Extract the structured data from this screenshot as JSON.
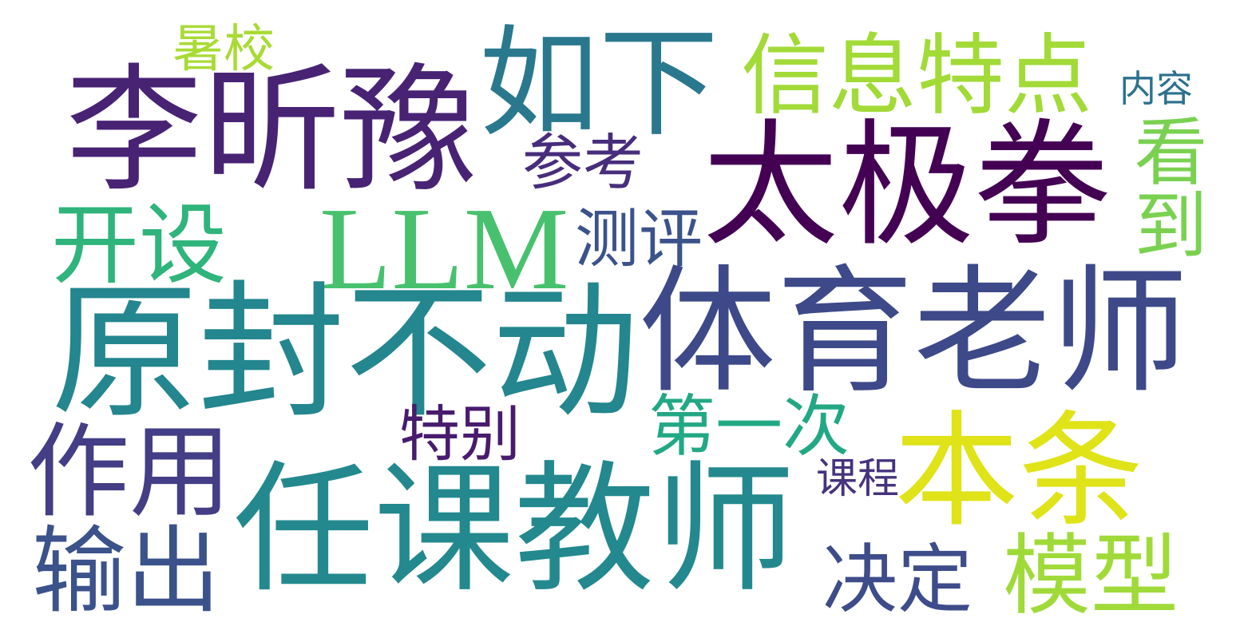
{
  "word_cloud": {
    "words": [
      {
        "text": "李昕豫",
        "color": "#482374"
      },
      {
        "text": "如下",
        "color": "#2a788e"
      },
      {
        "text": "信息特点",
        "color": "#a2da37"
      },
      {
        "text": "暑校",
        "color": "#a8db34"
      },
      {
        "text": "内容",
        "color": "#2c718e"
      },
      {
        "text": "参考",
        "color": "#472d7b"
      },
      {
        "text": "太极拳",
        "color": "#440154"
      },
      {
        "text": "看到",
        "color": "#7ad151"
      },
      {
        "text": "开设",
        "color": "#2fb47c"
      },
      {
        "text": "LLM",
        "color": "#48c16e"
      },
      {
        "text": "测评",
        "color": "#3b528b"
      },
      {
        "text": "原封不动",
        "color": "#24868e"
      },
      {
        "text": "体育老师",
        "color": "#3e4989"
      },
      {
        "text": "作用",
        "color": "#433e85"
      },
      {
        "text": "特别",
        "color": "#481b6d"
      },
      {
        "text": "第一次",
        "color": "#22a884"
      },
      {
        "text": "本条",
        "color": "#dfe318"
      },
      {
        "text": "课程",
        "color": "#46337e"
      },
      {
        "text": "任课教师",
        "color": "#23898e"
      },
      {
        "text": "输出",
        "color": "#3b528b"
      },
      {
        "text": "决定",
        "color": "#3e4c8a"
      },
      {
        "text": "模型",
        "color": "#a0da39"
      }
    ]
  }
}
